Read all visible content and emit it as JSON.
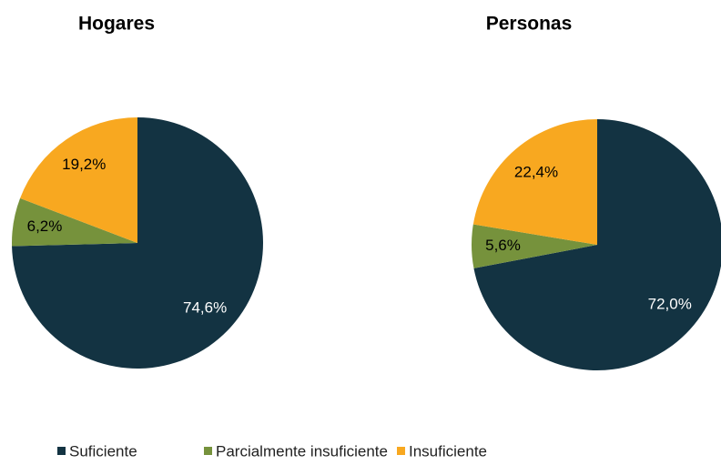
{
  "chart_data": [
    {
      "type": "pie",
      "title": "Hogares",
      "values": [
        74.6,
        6.2,
        19.2
      ],
      "value_labels": [
        "74,6%",
        "6,2%",
        "19,2%"
      ]
    },
    {
      "type": "pie",
      "title": "Personas",
      "values": [
        72.0,
        5.6,
        22.4
      ],
      "value_labels": [
        "72,0%",
        "5,6%",
        "22,4%"
      ]
    }
  ],
  "legend": {
    "categories": [
      "Suficiente",
      "Parcialmente insuficiente",
      "Insuficiente"
    ],
    "colors": [
      "#133342",
      "#76923c",
      "#f8a820"
    ]
  }
}
